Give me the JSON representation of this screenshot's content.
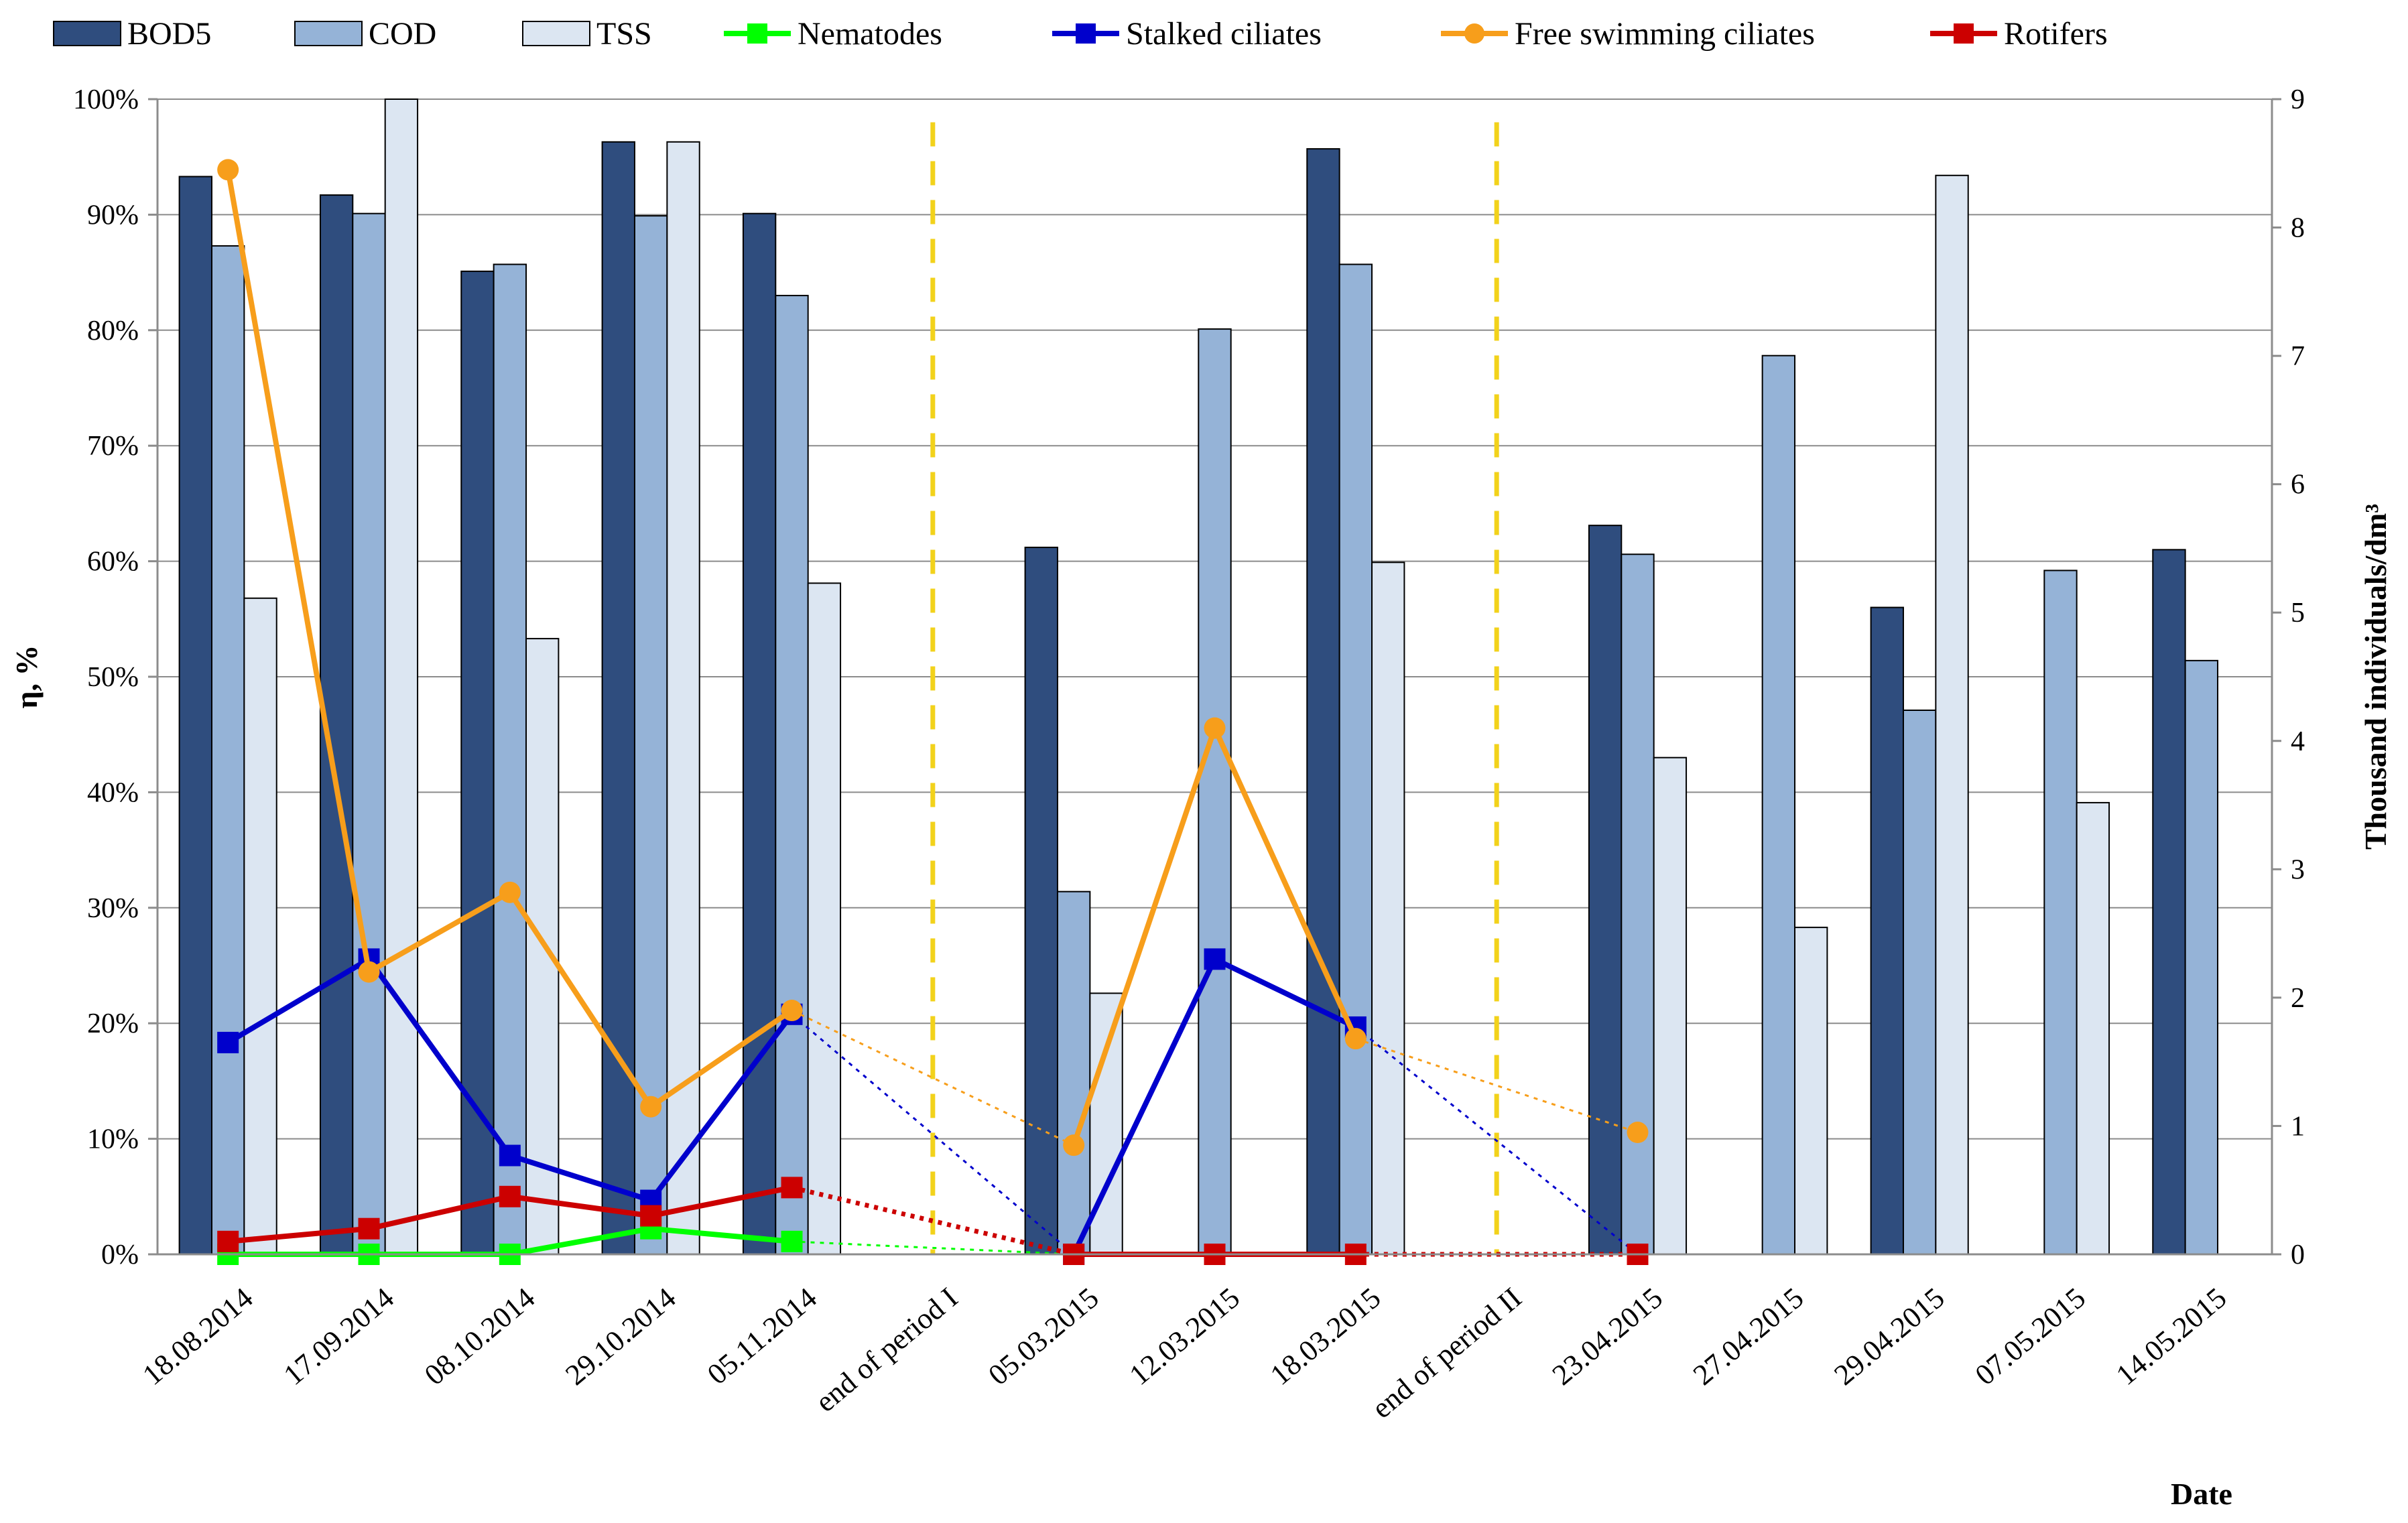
{
  "chart_data": {
    "type": "bar",
    "categories": [
      "18.08.2014",
      "17.09.2014",
      "08.10.2014",
      "29.10.2014",
      "05.11.2014",
      "end of period I",
      "05.03.2015",
      "12.03.2015",
      "18.03.2015",
      "end of period II",
      "23.04.2015",
      "27.04.2015",
      "29.04.2015",
      "07.05.2015",
      "14.05.2015"
    ],
    "y_left": {
      "label": "η, %",
      "min": 0,
      "max": 100,
      "ticks": [
        0,
        10,
        20,
        30,
        40,
        50,
        60,
        70,
        80,
        90,
        100
      ],
      "tick_labels": [
        "0%",
        "10%",
        "20%",
        "30%",
        "40%",
        "50%",
        "60%",
        "70%",
        "80%",
        "90%",
        "100%"
      ]
    },
    "y_right": {
      "label": "Thousand individuals/dm³",
      "min": 0,
      "max": 9,
      "ticks": [
        0,
        1,
        2,
        3,
        4,
        5,
        6,
        7,
        8,
        9
      ]
    },
    "xlabel": "Date",
    "bar_series": [
      {
        "name": "BOD5",
        "color": "#2f4d7e",
        "values": [
          93.3,
          91.7,
          85.1,
          96.3,
          90.1,
          null,
          61.2,
          null,
          95.7,
          null,
          63.1,
          null,
          56.0,
          null,
          61.0
        ]
      },
      {
        "name": "COD",
        "color": "#95b3d7",
        "values": [
          87.3,
          90.1,
          85.7,
          89.9,
          83.0,
          null,
          31.4,
          80.1,
          85.7,
          null,
          60.6,
          77.8,
          47.1,
          59.2,
          51.4
        ]
      },
      {
        "name": "TSS",
        "color": "#dce6f2",
        "values": [
          56.8,
          100.0,
          53.3,
          96.3,
          58.1,
          null,
          22.6,
          null,
          59.9,
          null,
          43.0,
          28.3,
          93.4,
          39.1,
          null
        ]
      }
    ],
    "line_series": [
      {
        "name": "Nematodes",
        "color": "#00ff00",
        "marker": "square",
        "points": [
          [
            0,
            0
          ],
          [
            1,
            0
          ],
          [
            2,
            0
          ],
          [
            3,
            0.2
          ],
          [
            4,
            0.1
          ]
        ],
        "dotted": [
          [
            4,
            0.1
          ],
          [
            6,
            0
          ]
        ]
      },
      {
        "name": "Stalked ciliates",
        "color": "#0000cc",
        "marker": "square",
        "points": [
          [
            0,
            1.65
          ],
          [
            1,
            2.3
          ],
          [
            2,
            0.77
          ],
          [
            3,
            0.42
          ],
          [
            4,
            1.87
          ]
        ],
        "points2": [
          [
            6,
            0
          ],
          [
            7,
            2.3
          ],
          [
            8,
            1.77
          ]
        ],
        "dotted": [
          [
            4,
            1.87
          ],
          [
            6,
            0
          ]
        ],
        "dotted2": [
          [
            8,
            1.77
          ],
          [
            10,
            0
          ]
        ]
      },
      {
        "name": "Free swimming ciliates",
        "color": "#f79e1b",
        "marker": "circle",
        "points": [
          [
            0,
            8.45
          ],
          [
            1,
            2.2
          ],
          [
            2,
            2.82
          ],
          [
            3,
            1.15
          ],
          [
            4,
            1.9
          ]
        ],
        "points2": [
          [
            6,
            0.85
          ],
          [
            7,
            4.1
          ],
          [
            8,
            1.68
          ]
        ],
        "dotted": [
          [
            4,
            1.9
          ],
          [
            6,
            0.85
          ]
        ],
        "dotted2": [
          [
            8,
            1.68
          ],
          [
            10,
            0.95
          ]
        ],
        "single": [
          [
            10,
            0.95
          ]
        ]
      },
      {
        "name": "Rotifers",
        "color": "#cc0000",
        "marker": "square",
        "points": [
          [
            0,
            0.1
          ],
          [
            1,
            0.2
          ],
          [
            2,
            0.45
          ],
          [
            3,
            0.3
          ],
          [
            4,
            0.52
          ]
        ],
        "points2": [
          [
            6,
            0
          ],
          [
            7,
            0
          ],
          [
            8,
            0
          ]
        ],
        "dotted": [
          [
            4,
            0.52
          ],
          [
            6,
            0
          ]
        ],
        "dotted2": [
          [
            8,
            0
          ],
          [
            10,
            0
          ]
        ],
        "single": [
          [
            10,
            0
          ]
        ]
      }
    ],
    "period_dividers": [
      {
        "after_category": "end of period I",
        "color": "#f2d21b"
      },
      {
        "after_category": "end of period II",
        "color": "#f2d21b"
      }
    ],
    "legend": [
      "BOD5",
      "COD",
      "TSS",
      "Nematodes",
      "Stalked ciliates",
      "Free swimming ciliates",
      "Rotifers"
    ],
    "grid": true
  }
}
